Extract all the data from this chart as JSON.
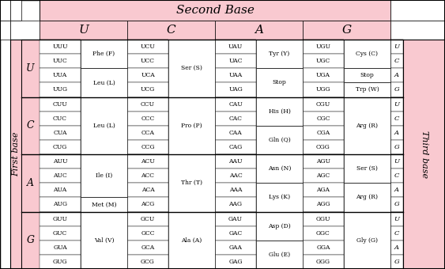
{
  "title": "Second Base",
  "first_label": "First base",
  "third_label": "Third base",
  "second_bases": [
    "U",
    "C",
    "A",
    "G"
  ],
  "first_bases": [
    "U",
    "C",
    "A",
    "G"
  ],
  "third_bases": [
    "U",
    "C",
    "A",
    "G"
  ],
  "codons": [
    [
      "UUU",
      "UUC",
      "UUA",
      "UUG"
    ],
    [
      "UCU",
      "UCC",
      "UCA",
      "UCG"
    ],
    [
      "UAU",
      "UAC",
      "UAA",
      "UAG"
    ],
    [
      "UGU",
      "UGC",
      "UGA",
      "UGG"
    ],
    [
      "CUU",
      "CUC",
      "CUA",
      "CUG"
    ],
    [
      "CCU",
      "CCC",
      "CCA",
      "CCG"
    ],
    [
      "CAU",
      "CAC",
      "CAA",
      "CAG"
    ],
    [
      "CGU",
      "CGC",
      "CGA",
      "CGG"
    ],
    [
      "AUU",
      "AUC",
      "AUA",
      "AUG"
    ],
    [
      "ACU",
      "ACC",
      "ACA",
      "ACG"
    ],
    [
      "AAU",
      "AAC",
      "AAA",
      "AAG"
    ],
    [
      "AGU",
      "AGC",
      "AGA",
      "AGG"
    ],
    [
      "GUU",
      "GUC",
      "GUA",
      "GUG"
    ],
    [
      "GCU",
      "GCC",
      "GCA",
      "GCG"
    ],
    [
      "GAU",
      "GAC",
      "GAA",
      "GAG"
    ],
    [
      "GGU",
      "GGC",
      "GGA",
      "GGG"
    ]
  ],
  "amino_acids": [
    [
      "Phe (F)",
      "Phe (F)",
      "Leu (L)",
      "Leu (L)"
    ],
    [
      "Ser (S)",
      "Ser (S)",
      "Ser (S)",
      "Ser (S)"
    ],
    [
      "Tyr (Y)",
      "Tyr (Y)",
      "Stop",
      "Stop"
    ],
    [
      "Cys (C)",
      "Cys (C)",
      "Stop",
      "Trp (W)"
    ],
    [
      "Leu (L)",
      "Leu (L)",
      "Leu (L)",
      "Leu (L)"
    ],
    [
      "Pro (P)",
      "Pro (P)",
      "Pro (P)",
      "Pro (P)"
    ],
    [
      "His (H)",
      "His (H)",
      "Gln (Q)",
      "Gln (Q)"
    ],
    [
      "Arg (R)",
      "Arg (R)",
      "Arg (R)",
      "Arg (R)"
    ],
    [
      "Ile (I)",
      "Ile (I)",
      "Ile (I)",
      "Met (M)"
    ],
    [
      "Thr (T)",
      "Thr (T)",
      "Thr (T)",
      "Thr (T)"
    ],
    [
      "Asn (N)",
      "Asn (N)",
      "Lys (K)",
      "Lys (K)"
    ],
    [
      "Ser (S)",
      "Ser (S)",
      "Arg (R)",
      "Arg (R)"
    ],
    [
      "Val (V)",
      "Val (V)",
      "Val (V)",
      "Val (V)"
    ],
    [
      "Ala (A)",
      "Ala (A)",
      "Ala (A)",
      "Ala (A)"
    ],
    [
      "Asp (D)",
      "Asp (D)",
      "Glu (E)",
      "Glu (E)"
    ],
    [
      "Gly (G)",
      "Gly (G)",
      "Gly (G)",
      "Gly (G)"
    ]
  ],
  "pink": "#f9c9d0",
  "white": "#ffffff",
  "black": "#000000",
  "fig_w": 5.63,
  "fig_h": 3.4
}
